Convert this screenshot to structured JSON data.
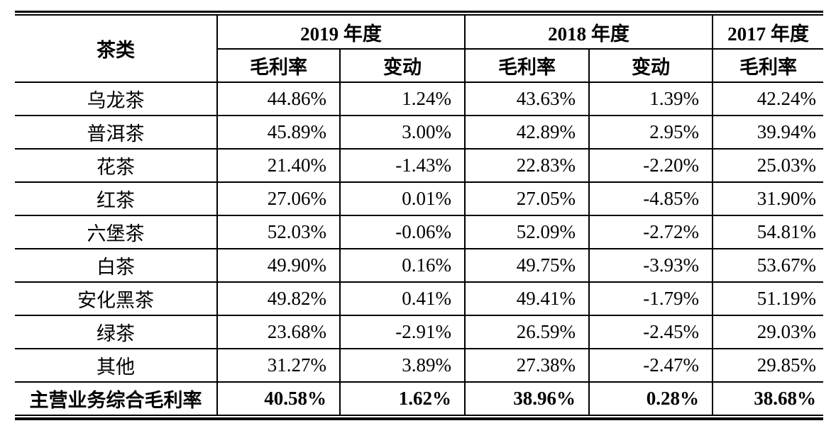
{
  "table": {
    "corner_header": "茶类",
    "year_headers": [
      "2019 年度",
      "2018 年度",
      "2017 年度"
    ],
    "sub_headers": [
      "毛利率",
      "变动",
      "毛利率",
      "变动",
      "毛利率"
    ],
    "rows": [
      {
        "name": "乌龙茶",
        "values": [
          "44.86%",
          "1.24%",
          "43.63%",
          "1.39%",
          "42.24%"
        ],
        "is_total": false
      },
      {
        "name": "普洱茶",
        "values": [
          "45.89%",
          "3.00%",
          "42.89%",
          "2.95%",
          "39.94%"
        ],
        "is_total": false
      },
      {
        "name": "花茶",
        "values": [
          "21.40%",
          "-1.43%",
          "22.83%",
          "-2.20%",
          "25.03%"
        ],
        "is_total": false
      },
      {
        "name": "红茶",
        "values": [
          "27.06%",
          "0.01%",
          "27.05%",
          "-4.85%",
          "31.90%"
        ],
        "is_total": false
      },
      {
        "name": "六堡茶",
        "values": [
          "52.03%",
          "-0.06%",
          "52.09%",
          "-2.72%",
          "54.81%"
        ],
        "is_total": false
      },
      {
        "name": "白茶",
        "values": [
          "49.90%",
          "0.16%",
          "49.75%",
          "-3.93%",
          "53.67%"
        ],
        "is_total": false
      },
      {
        "name": "安化黑茶",
        "values": [
          "49.82%",
          "0.41%",
          "49.41%",
          "-1.79%",
          "51.19%"
        ],
        "is_total": false
      },
      {
        "name": "绿茶",
        "values": [
          "23.68%",
          "-2.91%",
          "26.59%",
          "-2.45%",
          "29.03%"
        ],
        "is_total": false
      },
      {
        "name": "其他",
        "values": [
          "31.27%",
          "3.89%",
          "27.38%",
          "-2.47%",
          "29.85%"
        ],
        "is_total": false
      },
      {
        "name": "主营业务综合毛利率",
        "values": [
          "40.58%",
          "1.62%",
          "38.96%",
          "0.28%",
          "38.68%"
        ],
        "is_total": true
      }
    ],
    "colors": {
      "border": "#000000",
      "text": "#000000",
      "background": "#ffffff"
    }
  }
}
